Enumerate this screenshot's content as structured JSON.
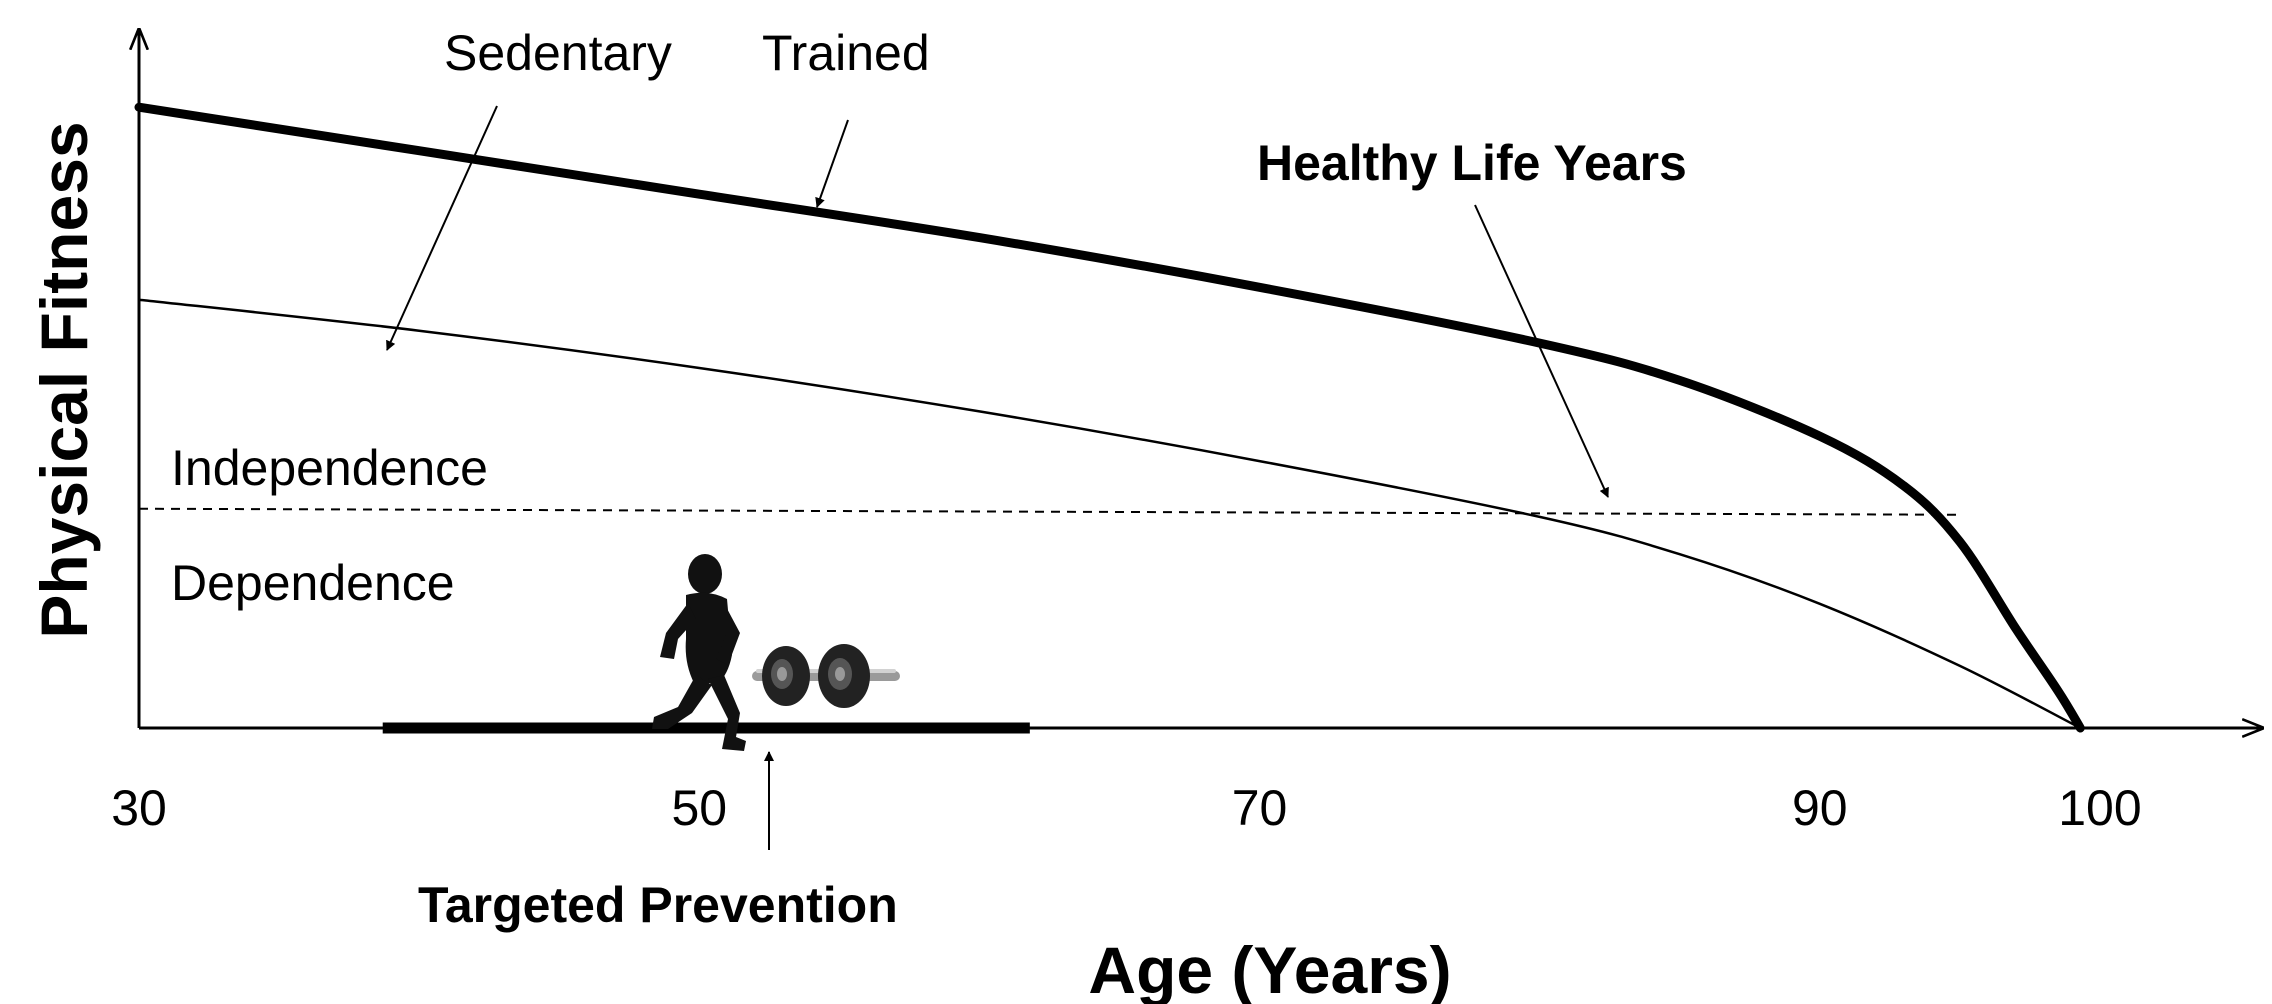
{
  "chart_data": {
    "type": "line",
    "title": "",
    "xlabel": "Age (Years)",
    "ylabel": "Physical Fitness",
    "xlim": [
      30,
      104
    ],
    "ylim": [
      0,
      1.06
    ],
    "x_ticks": [
      30,
      50,
      70,
      90,
      100
    ],
    "tick_labels": [
      "30",
      "50",
      "70",
      "90",
      "100"
    ],
    "grid": false,
    "series": [
      {
        "name": "Trained",
        "style": "thick",
        "x": [
          30,
          40,
          50,
          60,
          70,
          80,
          85,
          90,
          93,
          95,
          97,
          98.5,
          99.3
        ],
        "y": [
          1.0,
          0.93,
          0.86,
          0.79,
          0.71,
          0.62,
          0.56,
          0.47,
          0.39,
          0.3,
          0.16,
          0.06,
          0.0
        ]
      },
      {
        "name": "Sedentary",
        "style": "thin",
        "x": [
          30,
          40,
          50,
          60,
          70,
          80,
          85,
          90,
          95,
          99.3
        ],
        "y": [
          0.69,
          0.64,
          0.58,
          0.51,
          0.43,
          0.34,
          0.28,
          0.2,
          0.1,
          0.0
        ]
      }
    ],
    "threshold": {
      "y": 0.35,
      "x_start": 30,
      "x_end": 95,
      "label_above": "Independence",
      "label_below": "Dependence"
    },
    "prevention_bar": {
      "x_start": 38.7,
      "x_end": 61.8
    },
    "annotations": {
      "sedentary": "Sedentary",
      "trained": "Trained",
      "healthy_life_years": "Healthy Life Years",
      "targeted_prevention": "Targeted Prevention"
    },
    "icons": [
      "runner-icon",
      "barbell-icon"
    ]
  }
}
